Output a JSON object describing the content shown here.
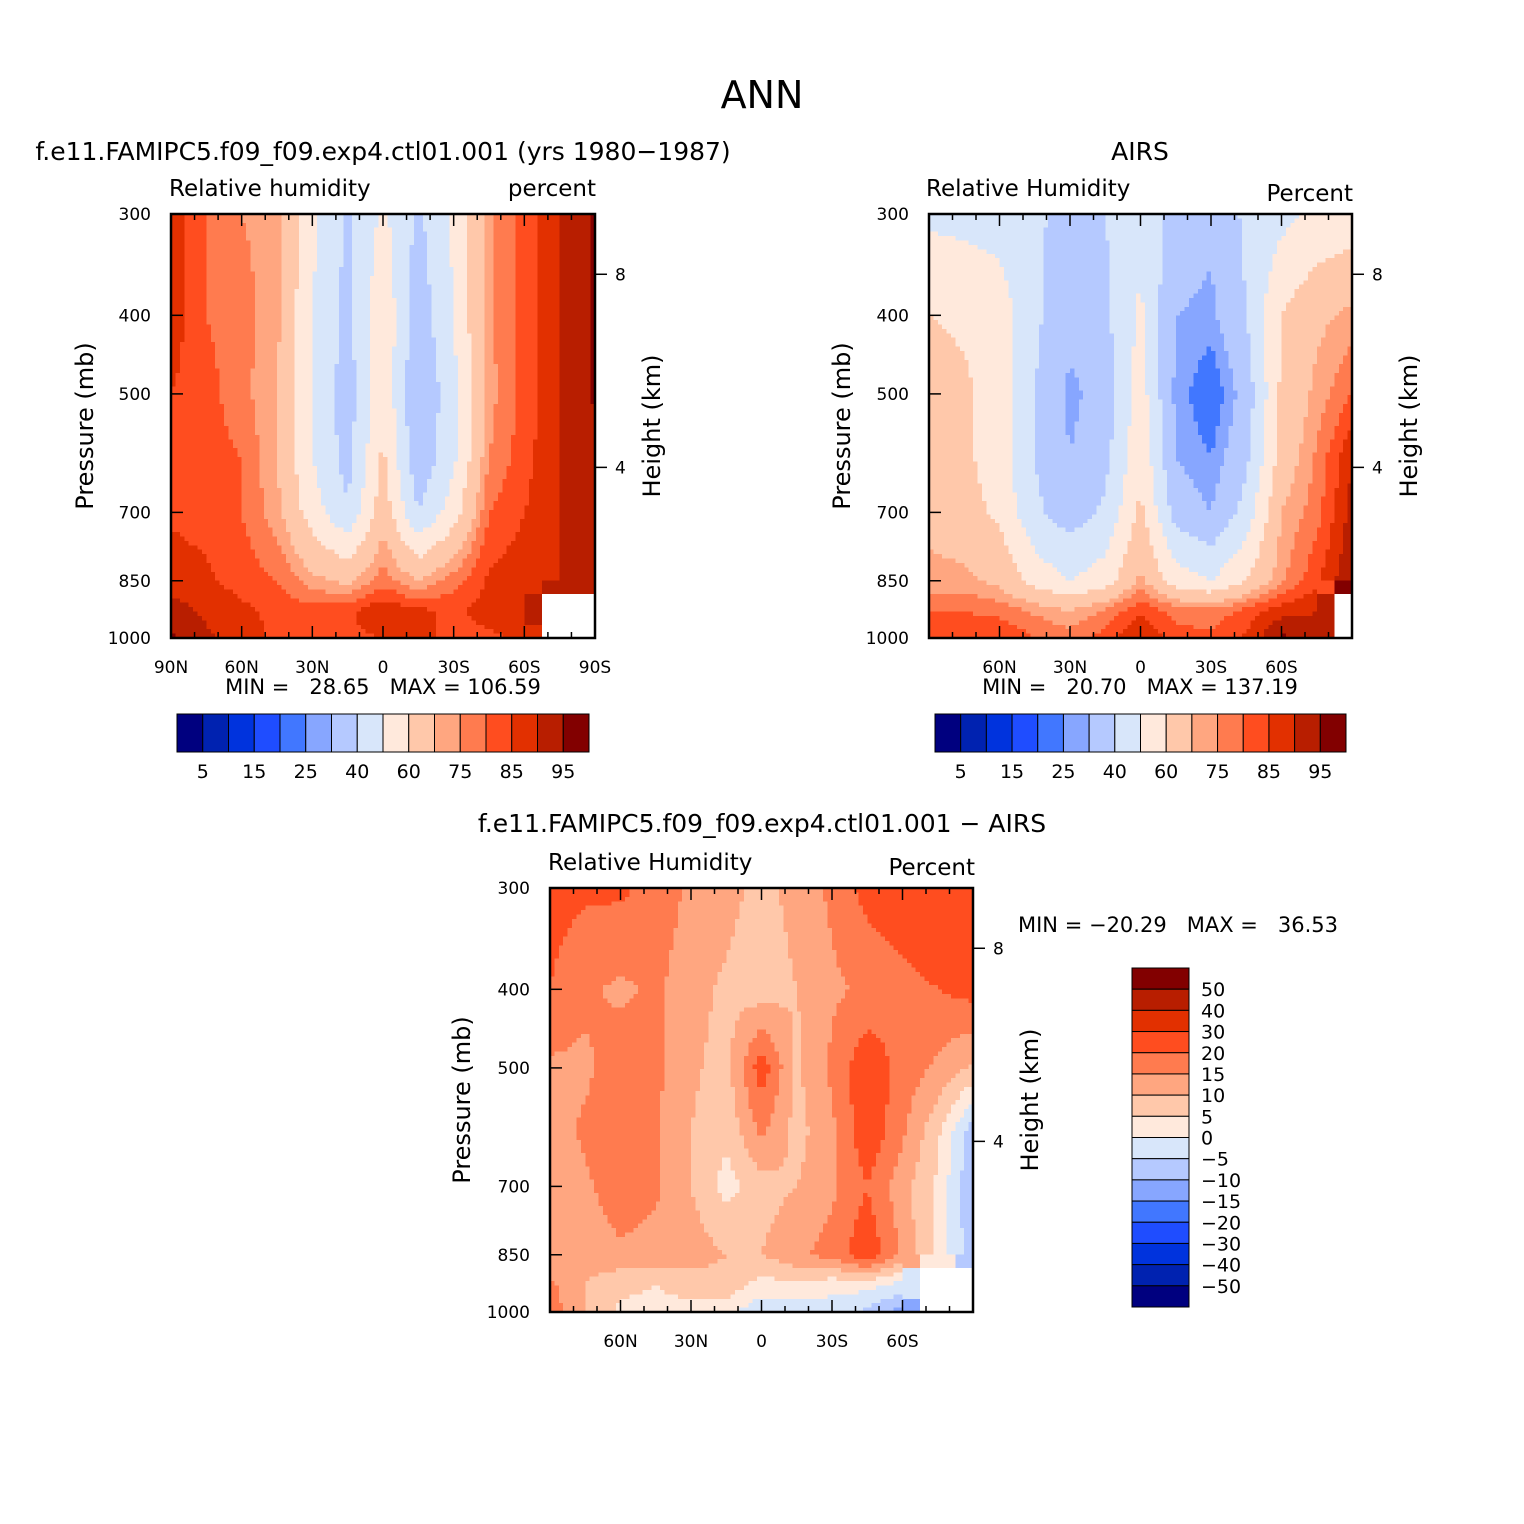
{
  "page_title": "ANN",
  "chart_data": [
    {
      "type": "heatmap",
      "panel": "model",
      "title": "f.e11.FAMIPC5.f09_f09.exp4.ctl01.001 (yrs 1980−1987)",
      "left_label": "Relative humidity",
      "right_label": "percent",
      "ylabel": "Pressure (mb)",
      "y2label": "Height (km)",
      "y_ticks": [
        300,
        400,
        500,
        700,
        850,
        1000
      ],
      "y2_ticks": [
        "8",
        "4"
      ],
      "x_ticks": [
        "90N",
        "60N",
        "30N",
        "0",
        "30S",
        "60S",
        "90S"
      ],
      "ylim": [
        1000,
        300
      ],
      "xlim": [
        "90N",
        "90S"
      ],
      "min_text": "MIN =   28.65   MAX = 106.59",
      "colorbar_labels": [
        "5",
        "15",
        "25",
        "40",
        "60",
        "75",
        "85",
        "95"
      ],
      "levels": [
        5,
        10,
        15,
        20,
        25,
        30,
        40,
        50,
        60,
        70,
        75,
        80,
        85,
        90,
        95
      ],
      "colors": [
        "#00007f",
        "#0022b0",
        "#0033dd",
        "#1f4dff",
        "#4177ff",
        "#87a6ff",
        "#b5c9ff",
        "#d8e6fa",
        "#ffe9dc",
        "#ffc8aa",
        "#ffa680",
        "#ff7b4f",
        "#ff4d1f",
        "#e23000",
        "#b81e00",
        "#820000"
      ],
      "grid": {
        "lat": [
          90,
          75,
          60,
          45,
          30,
          15,
          0,
          -15,
          -30,
          -45,
          -60,
          -75,
          -90
        ],
        "p": [
          300,
          400,
          500,
          600,
          700,
          850,
          925,
          1000
        ],
        "values": [
          [
            88,
            80,
            75,
            73,
            52,
            38,
            52,
            38,
            52,
            74,
            82,
            90,
            96
          ],
          [
            88,
            80,
            77,
            72,
            50,
            37,
            58,
            34,
            50,
            74,
            82,
            90,
            96
          ],
          [
            85,
            82,
            77,
            70,
            49,
            35,
            58,
            30,
            47,
            73,
            82,
            90,
            96
          ],
          [
            83,
            82,
            80,
            70,
            50,
            36,
            62,
            32,
            48,
            75,
            83,
            90,
            92
          ],
          [
            84,
            83,
            80,
            72,
            55,
            41,
            66,
            40,
            55,
            80,
            85,
            90,
            92
          ],
          [
            88,
            86,
            83,
            80,
            72,
            68,
            78,
            70,
            78,
            86,
            88,
            90,
            90
          ],
          [
            92,
            89,
            86,
            84,
            82,
            84,
            89,
            86,
            84,
            87,
            90,
            null,
            null
          ],
          [
            96,
            91,
            87,
            84,
            82,
            84,
            85,
            86,
            84,
            84,
            86,
            null,
            null
          ]
        ]
      }
    },
    {
      "type": "heatmap",
      "panel": "obs",
      "title": "AIRS",
      "left_label": "Relative Humidity",
      "right_label": "Percent",
      "ylabel": "Pressure (mb)",
      "y2label": "Height (km)",
      "y_ticks": [
        300,
        400,
        500,
        700,
        850,
        1000
      ],
      "y2_ticks": [
        "8",
        "4"
      ],
      "x_ticks": [
        "60N",
        "30N",
        "0",
        "30S",
        "60S"
      ],
      "ylim": [
        1000,
        300
      ],
      "min_text": "MIN =   20.70   MAX = 137.19",
      "colorbar_labels": [
        "5",
        "15",
        "25",
        "40",
        "60",
        "75",
        "85",
        "95"
      ],
      "levels": [
        5,
        10,
        15,
        20,
        25,
        30,
        40,
        50,
        60,
        70,
        75,
        80,
        85,
        90,
        95
      ],
      "colors": [
        "#00007f",
        "#0022b0",
        "#0033dd",
        "#1f4dff",
        "#4177ff",
        "#87a6ff",
        "#b5c9ff",
        "#d8e6fa",
        "#ffe9dc",
        "#ffc8aa",
        "#ffa680",
        "#ff7b4f",
        "#ff4d1f",
        "#e23000",
        "#b81e00",
        "#820000"
      ],
      "grid": {
        "lat": [
          90,
          75,
          60,
          45,
          30,
          15,
          0,
          -15,
          -30,
          -45,
          -60,
          -75,
          -90
        ],
        "p": [
          300,
          400,
          500,
          600,
          700,
          850,
          925,
          1000
        ],
        "values": [
          [
            48,
            47,
            46,
            42,
            36,
            40,
            46,
            37,
            32,
            42,
            47,
            52,
            54
          ],
          [
            60,
            58,
            55,
            42,
            33,
            38,
            52,
            30,
            28,
            40,
            60,
            68,
            72
          ],
          [
            66,
            62,
            55,
            40,
            28,
            34,
            55,
            28,
            20,
            34,
            62,
            72,
            80
          ],
          [
            70,
            62,
            55,
            40,
            30,
            37,
            58,
            30,
            25,
            38,
            64,
            76,
            90
          ],
          [
            68,
            64,
            58,
            42,
            35,
            42,
            62,
            36,
            30,
            44,
            70,
            78,
            92
          ],
          [
            72,
            72,
            68,
            56,
            50,
            55,
            72,
            55,
            50,
            60,
            74,
            84,
            95
          ],
          [
            80,
            80,
            78,
            74,
            70,
            76,
            84,
            78,
            76,
            82,
            88,
            90,
            null
          ],
          [
            82,
            84,
            85,
            80,
            78,
            82,
            90,
            82,
            82,
            86,
            96,
            92,
            null
          ]
        ]
      }
    },
    {
      "type": "heatmap",
      "panel": "diff",
      "title": "f.e11.FAMIPC5.f09_f09.exp4.ctl01.001 − AIRS",
      "left_label": "Relative Humidity",
      "right_label": "Percent",
      "ylabel": "Pressure (mb)",
      "y2label": "Height (km)",
      "y_ticks": [
        300,
        400,
        500,
        700,
        850,
        1000
      ],
      "y2_ticks": [
        "8",
        "4"
      ],
      "x_ticks": [
        "60N",
        "30N",
        "0",
        "30S",
        "60S"
      ],
      "ylim": [
        1000,
        300
      ],
      "min_text": "MIN = −20.29   MAX =   36.53",
      "colorbar_labels": [
        "50",
        "40",
        "30",
        "20",
        "15",
        "10",
        "5",
        "0",
        "−5",
        "−10",
        "−15",
        "−20",
        "−30",
        "−40",
        "−50"
      ],
      "levels": [
        -50,
        -40,
        -30,
        -20,
        -15,
        -10,
        -5,
        0,
        5,
        10,
        15,
        20,
        30,
        40,
        50
      ],
      "colors": [
        "#00007f",
        "#0022b0",
        "#0033dd",
        "#1f4dff",
        "#4177ff",
        "#87a6ff",
        "#b5c9ff",
        "#d8e6fa",
        "#ffe9dc",
        "#ffc8aa",
        "#ffa680",
        "#ff7b4f",
        "#ff4d1f",
        "#e23000",
        "#b81e00",
        "#820000"
      ],
      "grid": {
        "lat": [
          90,
          75,
          60,
          45,
          30,
          15,
          0,
          -15,
          -30,
          -45,
          -60,
          -75,
          -90
        ],
        "p": [
          300,
          400,
          500,
          600,
          700,
          850,
          925,
          1000
        ],
        "values": [
          [
            22,
            21,
            21,
            18,
            14,
            12,
            8,
            12,
            16,
            22,
            24,
            26,
            27
          ],
          [
            20,
            16,
            14,
            16,
            12,
            9,
            7,
            10,
            14,
            16,
            18,
            20,
            22
          ],
          [
            14,
            14,
            18,
            16,
            11,
            8,
            23,
            9,
            16,
            24,
            18,
            14,
            9
          ],
          [
            12,
            16,
            18,
            16,
            10,
            6,
            16,
            8,
            14,
            24,
            16,
            6,
            -8
          ],
          [
            12,
            14,
            18,
            16,
            10,
            3,
            8,
            10,
            14,
            20,
            12,
            4,
            -10
          ],
          [
            11,
            12,
            14,
            13,
            13,
            10,
            10,
            14,
            17,
            24,
            14,
            3,
            -8
          ],
          [
            16,
            10,
            6,
            5,
            7,
            8,
            3,
            4,
            2,
            2,
            -2,
            null,
            null
          ],
          [
            18,
            10,
            4,
            4,
            3,
            2,
            -4,
            -3,
            -3,
            -6,
            -12,
            null,
            null
          ]
        ]
      }
    }
  ]
}
